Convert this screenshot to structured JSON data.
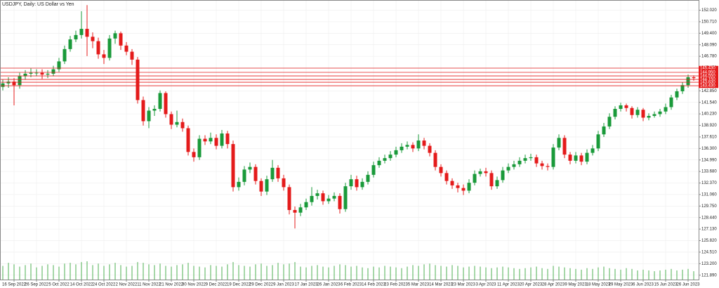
{
  "chart_data": {
    "type": "candlestick",
    "title": "USDJPY, Daily: US Dollar vs Yen",
    "categories": [
      null,
      null,
      "16 Sep 2022",
      null,
      null,
      null,
      "26 Sep 2022",
      null,
      null,
      null,
      "5 Oct 2022",
      null,
      null,
      null,
      "14 Oct 2022",
      null,
      null,
      null,
      "24 Oct 2022",
      null,
      null,
      null,
      "2 Nov 2022",
      null,
      null,
      null,
      "11 Nov 2022",
      null,
      null,
      null,
      "21 Nov 2022",
      null,
      null,
      null,
      "30 Nov 2022",
      null,
      null,
      null,
      "9 Dec 2022",
      null,
      null,
      null,
      "19 Dec 2022",
      null,
      null,
      null,
      "29 Dec 2022",
      null,
      null,
      null,
      "9 Jan 2023",
      null,
      null,
      null,
      "17 Jan 2023",
      null,
      null,
      null,
      "26 Jan 2023",
      null,
      null,
      null,
      "6 Feb 2023",
      null,
      null,
      null,
      "14 Feb 2023",
      null,
      null,
      null,
      "23 Feb 2023",
      null,
      null,
      null,
      "5 Mar 2023",
      null,
      null,
      null,
      "14 Mar 2023",
      null,
      null,
      null,
      "23 Mar 2023",
      null,
      null,
      null,
      "3 Apr 2023",
      null,
      null,
      null,
      "11 Apr 2023",
      null,
      null,
      null,
      "20 Apr 2023",
      null,
      null,
      null,
      "28 Apr 2023",
      null,
      null,
      null,
      "9 May 2023",
      null,
      null,
      null,
      "18 May 2023",
      null,
      null,
      null,
      "29 May 2023",
      null,
      null,
      null,
      "6 Jun 2023",
      null,
      null,
      null,
      "15 Jun 2023",
      null,
      null,
      null,
      "26 Jun 2023",
      null
    ],
    "open": [
      143.3,
      143.7,
      143.9,
      143.5,
      144.5,
      144.8,
      144.9,
      144.9,
      144.7,
      144.8,
      145.3,
      146.2,
      147.6,
      148.7,
      149.2,
      149.9,
      149.0,
      148.5,
      147.0,
      146.6,
      148.8,
      149.4,
      148.0,
      147.3,
      146.4,
      141.8,
      139.4,
      140.6,
      140.8,
      142.6,
      140.2,
      139.0,
      139.3,
      138.6,
      135.9,
      135.3,
      137.4,
      137.1,
      137.5,
      136.6,
      138.0,
      136.8,
      131.9,
      132.5,
      133.9,
      134.2,
      132.6,
      131.4,
      132.8,
      134.1,
      132.9,
      131.9,
      129.3,
      129.0,
      129.6,
      130.2,
      130.9,
      131.2,
      130.3,
      130.6,
      130.9,
      129.4,
      132.0,
      132.8,
      131.9,
      132.5,
      133.3,
      134.4,
      134.9,
      135.2,
      135.6,
      136.1,
      136.5,
      136.7,
      136.3,
      137.2,
      136.6,
      135.8,
      134.2,
      133.5,
      132.6,
      132.1,
      131.8,
      131.5,
      132.4,
      133.4,
      133.7,
      133.5,
      132.0,
      132.7,
      133.8,
      134.2,
      134.5,
      134.9,
      135.2,
      135.3,
      134.6,
      134.3,
      134.2,
      136.4,
      137.5,
      135.6,
      134.9,
      135.5,
      134.8,
      135.8,
      136.3,
      137.9,
      138.8,
      139.9,
      140.8,
      141.2,
      140.9,
      140.1,
      140.7,
      139.8,
      140.0,
      140.2,
      140.5,
      141.0,
      142.1,
      142.8,
      143.5,
      144.4
    ],
    "high": [
      144.1,
      144.4,
      144.3,
      144.9,
      145.2,
      145.4,
      145.3,
      145.3,
      145.2,
      145.7,
      146.6,
      148.0,
      149.1,
      149.7,
      151.9,
      152.6,
      149.5,
      148.9,
      147.5,
      149.2,
      149.7,
      149.6,
      148.4,
      147.6,
      146.7,
      142.2,
      141.0,
      141.2,
      142.9,
      142.8,
      140.5,
      140.6,
      139.7,
      138.9,
      136.3,
      137.8,
      137.8,
      138.1,
      137.9,
      138.4,
      138.3,
      137.2,
      133.0,
      134.3,
      134.7,
      134.5,
      132.9,
      133.2,
      135.0,
      134.4,
      133.3,
      132.2,
      129.7,
      130.0,
      130.6,
      131.9,
      131.6,
      131.5,
      131.0,
      131.3,
      131.2,
      132.4,
      133.3,
      133.2,
      132.9,
      133.7,
      134.8,
      135.3,
      135.6,
      136.0,
      136.5,
      136.9,
      137.1,
      137.0,
      137.9,
      137.5,
      136.9,
      136.1,
      134.5,
      133.8,
      132.9,
      132.4,
      132.2,
      132.8,
      133.8,
      134.0,
      134.1,
      133.8,
      133.1,
      134.2,
      134.6,
      134.9,
      135.3,
      135.6,
      135.7,
      135.6,
      134.9,
      134.6,
      136.8,
      137.9,
      137.8,
      135.9,
      135.9,
      135.8,
      136.2,
      136.7,
      138.3,
      139.2,
      140.3,
      141.1,
      141.5,
      141.4,
      141.1,
      141.0,
      140.9,
      140.3,
      140.5,
      140.8,
      141.4,
      142.4,
      143.1,
      143.8,
      144.7,
      144.6
    ],
    "low": [
      142.9,
      143.2,
      141.2,
      143.1,
      144.1,
      144.4,
      144.5,
      144.2,
      144.3,
      144.5,
      145.0,
      145.9,
      147.3,
      148.4,
      148.8,
      146.8,
      147.7,
      146.5,
      145.9,
      146.3,
      148.2,
      147.5,
      146.9,
      145.8,
      141.4,
      138.9,
      138.6,
      140.0,
      140.5,
      139.8,
      138.5,
      138.7,
      138.2,
      135.5,
      134.8,
      135.0,
      136.7,
      136.8,
      136.2,
      136.3,
      136.3,
      131.4,
      131.5,
      132.1,
      133.5,
      132.2,
      130.9,
      131.0,
      132.5,
      132.5,
      131.5,
      128.8,
      127.2,
      128.6,
      129.3,
      129.8,
      130.5,
      129.9,
      130.0,
      130.3,
      128.9,
      129.1,
      131.6,
      131.5,
      131.6,
      132.2,
      133.0,
      134.1,
      134.6,
      134.9,
      135.3,
      135.8,
      136.2,
      135.9,
      136.0,
      136.2,
      135.4,
      133.8,
      133.1,
      132.2,
      131.7,
      131.3,
      131.0,
      131.2,
      132.1,
      133.1,
      133.1,
      131.6,
      131.7,
      132.4,
      133.5,
      133.9,
      134.2,
      134.6,
      134.9,
      134.2,
      133.9,
      133.8,
      133.9,
      136.1,
      135.2,
      134.5,
      134.6,
      134.4,
      134.5,
      135.5,
      136.0,
      137.6,
      138.5,
      139.6,
      140.5,
      140.5,
      139.7,
      139.8,
      139.4,
      139.5,
      139.8,
      139.9,
      140.2,
      140.7,
      141.8,
      142.5,
      143.2,
      144.0
    ],
    "close": [
      143.7,
      143.9,
      143.5,
      144.5,
      144.8,
      144.9,
      144.9,
      144.7,
      144.8,
      145.3,
      146.2,
      147.6,
      148.7,
      149.2,
      149.9,
      149.0,
      148.5,
      147.0,
      146.6,
      148.8,
      149.4,
      148.0,
      147.3,
      146.4,
      141.8,
      139.4,
      140.6,
      140.8,
      142.6,
      140.2,
      139.0,
      139.3,
      138.6,
      135.9,
      135.3,
      137.4,
      137.1,
      137.5,
      136.6,
      138.0,
      136.8,
      131.9,
      132.5,
      133.9,
      134.2,
      132.6,
      131.4,
      132.8,
      134.1,
      132.9,
      131.9,
      129.3,
      129.0,
      129.6,
      130.2,
      130.9,
      131.2,
      130.3,
      130.6,
      130.9,
      129.4,
      132.0,
      132.8,
      131.9,
      132.5,
      133.3,
      134.4,
      134.9,
      135.2,
      135.6,
      136.1,
      136.5,
      136.7,
      136.3,
      137.2,
      136.6,
      135.8,
      134.2,
      133.5,
      132.6,
      132.1,
      131.8,
      131.5,
      132.4,
      133.4,
      133.7,
      133.5,
      132.0,
      132.7,
      133.8,
      134.2,
      134.5,
      134.9,
      135.2,
      135.3,
      134.6,
      134.3,
      134.2,
      136.4,
      137.5,
      135.6,
      134.9,
      135.5,
      134.8,
      135.8,
      136.3,
      137.9,
      138.8,
      139.9,
      140.8,
      141.2,
      140.9,
      140.1,
      140.7,
      139.8,
      140.0,
      140.2,
      140.5,
      141.0,
      142.1,
      142.8,
      143.5,
      144.4,
      144.3
    ],
    "volume": [
      18,
      22,
      20,
      17,
      19,
      21,
      16,
      18,
      20,
      19,
      17,
      21,
      22,
      20,
      23,
      24,
      19,
      21,
      18,
      20,
      22,
      19,
      17,
      18,
      23,
      22,
      20,
      19,
      21,
      18,
      17,
      19,
      20,
      22,
      18,
      17,
      16,
      19,
      18,
      17,
      20,
      23,
      19,
      18,
      17,
      20,
      21,
      18,
      19,
      22,
      20,
      21,
      23,
      17,
      16,
      18,
      19,
      17,
      16,
      18,
      20,
      19,
      17,
      18,
      16,
      15,
      17,
      16,
      18,
      17,
      16,
      15,
      17,
      19,
      18,
      20,
      21,
      19,
      18,
      17,
      19,
      18,
      16,
      17,
      18,
      17,
      16,
      15,
      16,
      17,
      16,
      15,
      14,
      15,
      16,
      17,
      15,
      14,
      18,
      17,
      16,
      15,
      14,
      13,
      15,
      14,
      16,
      17,
      15,
      14,
      13,
      15,
      14,
      12,
      13,
      12,
      11,
      12,
      13,
      14,
      12,
      13,
      14,
      11
    ],
    "up_color": "#1a9a3a",
    "down_color": "#e41b1b",
    "volume_color": "#4caf50",
    "ylim": [
      121.39,
      153.18
    ],
    "yticks": [
      {
        "value": 152.02,
        "label": "152.020"
      },
      {
        "value": 150.71,
        "label": "150.710"
      },
      {
        "value": 149.4,
        "label": "149.400"
      },
      {
        "value": 148.09,
        "label": "148.090"
      },
      {
        "value": 146.78,
        "label": "146.780"
      },
      {
        "value": 145.47,
        "label": "145.470"
      },
      {
        "value": 144.16,
        "label": "144.160"
      },
      {
        "value": 142.85,
        "label": "142.850"
      },
      {
        "value": 141.54,
        "label": "141.540"
      },
      {
        "value": 140.23,
        "label": "140.230"
      },
      {
        "value": 138.92,
        "label": "138.920"
      },
      {
        "value": 137.61,
        "label": "137.610"
      },
      {
        "value": 136.3,
        "label": "136.300"
      },
      {
        "value": 134.99,
        "label": "134.990"
      },
      {
        "value": 133.68,
        "label": "133.680"
      },
      {
        "value": 132.37,
        "label": "132.370"
      },
      {
        "value": 131.06,
        "label": "131.060"
      },
      {
        "value": 129.75,
        "label": "129.750"
      },
      {
        "value": 128.44,
        "label": "128.440"
      },
      {
        "value": 127.13,
        "label": "127.130"
      },
      {
        "value": 125.82,
        "label": "125.820"
      },
      {
        "value": 124.51,
        "label": "124.510"
      },
      {
        "value": 123.2,
        "label": "123.200"
      },
      {
        "value": 121.89,
        "label": "121.890"
      }
    ],
    "levels": [
      {
        "value": 145.43,
        "label": "145.430"
      },
      {
        "value": 144.95,
        "label": "144.950"
      },
      {
        "value": 144.55,
        "label": "144.550"
      },
      {
        "value": 144.15,
        "label": "144.150"
      },
      {
        "value": 143.83,
        "label": "143.830"
      },
      {
        "value": 143.43,
        "label": "143.430"
      }
    ],
    "level_color": "#e41b1b",
    "grid": true
  }
}
